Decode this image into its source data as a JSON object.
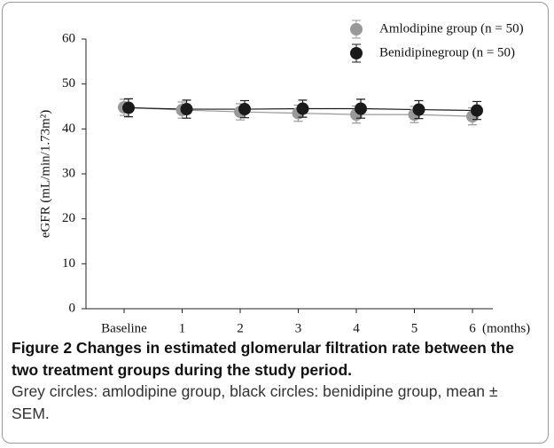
{
  "chart_data": {
    "type": "line",
    "ylabel": "eGFR (mL/min/1.73m²)",
    "xlabel": "(months)",
    "categories": [
      "Baseline",
      "1",
      "2",
      "3",
      "4",
      "5",
      "6"
    ],
    "series": [
      {
        "name": "Amlodipine group (n = 50)",
        "color": "#999999",
        "values": [
          44.8,
          44.2,
          43.8,
          43.5,
          43.2,
          43.2,
          42.8
        ],
        "errors": [
          1.8,
          1.8,
          1.8,
          1.8,
          1.9,
          1.8,
          1.9
        ]
      },
      {
        "name": "Benidipinegroup (n = 50)",
        "color": "#1a1a1a",
        "values": [
          44.7,
          44.4,
          44.4,
          44.5,
          44.5,
          44.3,
          44.1
        ],
        "errors": [
          2.0,
          2.0,
          1.9,
          1.9,
          2.1,
          2.0,
          2.0
        ]
      }
    ],
    "ylim": [
      0,
      60
    ],
    "yticks": [
      0,
      10,
      20,
      30,
      40,
      50,
      60
    ],
    "legend": "top-right",
    "error_bars": true
  },
  "caption": {
    "title": "Figure 2 Changes in estimated glomerular filtration rate between the two treatment groups during the study period.",
    "text": "Grey circles: amlodipine group, black circles: benidipine group, mean ± SEM."
  }
}
